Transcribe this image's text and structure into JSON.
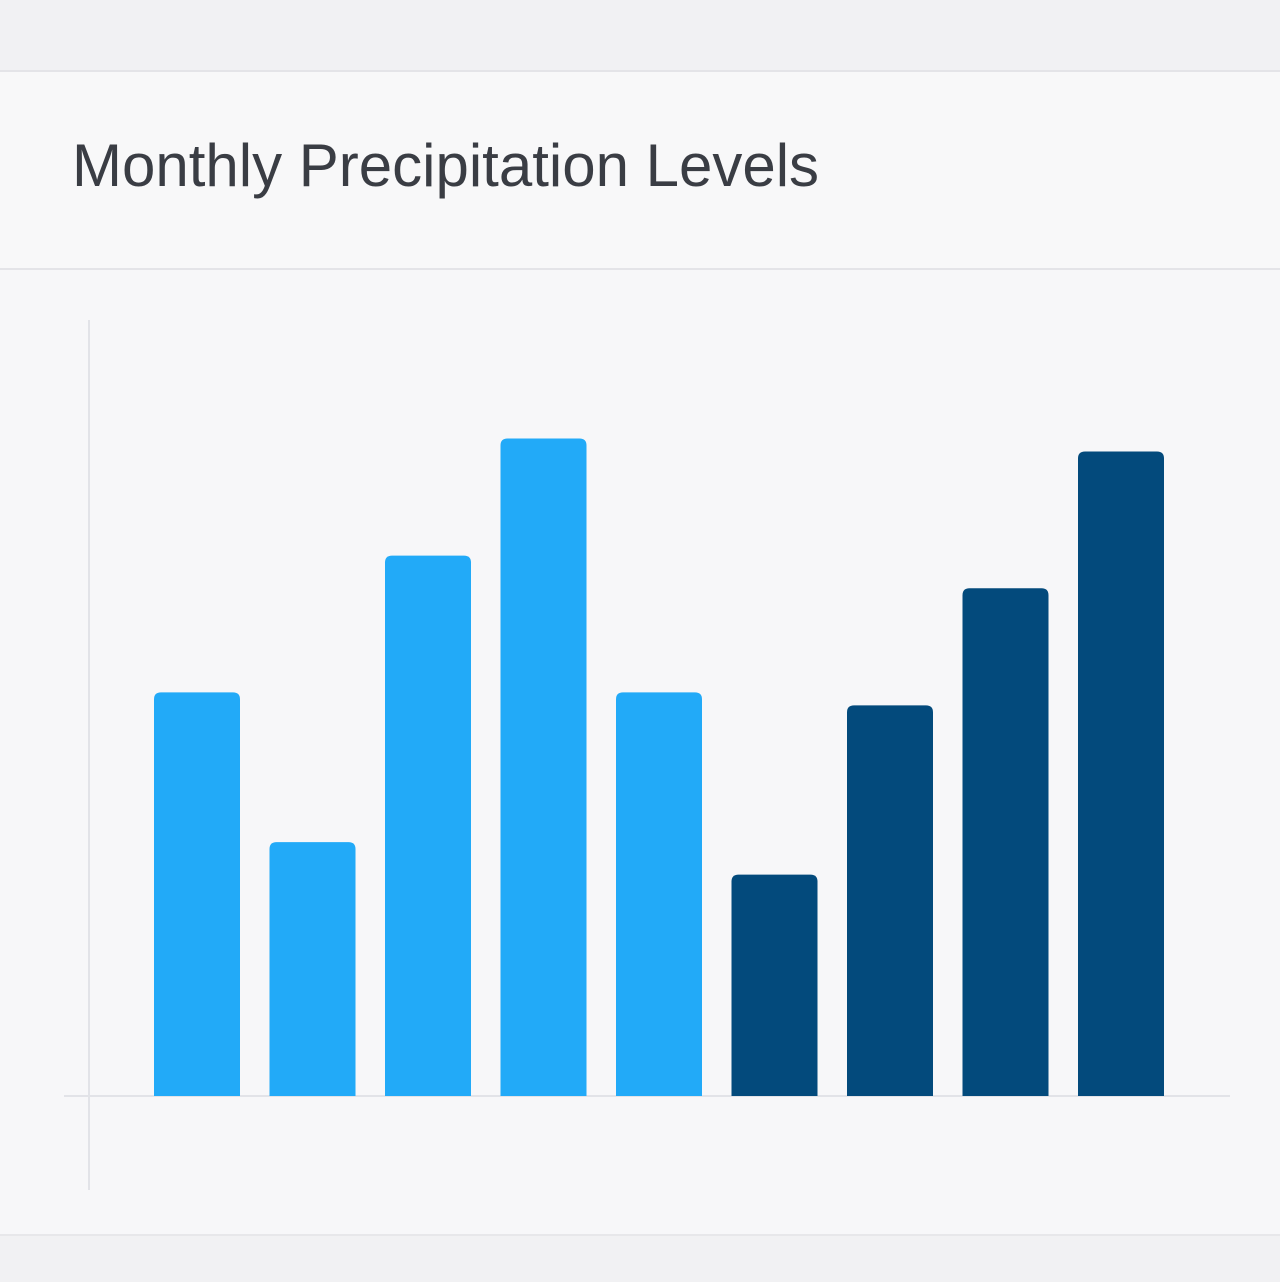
{
  "header": {
    "title": "Monthly Precipitation Levels"
  },
  "chart_data": {
    "type": "bar",
    "title": "Monthly Precipitation Levels",
    "xlabel": "",
    "ylabel": "",
    "ylim": [
      0,
      100
    ],
    "grid": false,
    "legend": "none",
    "values": [
      62,
      39,
      83,
      101,
      62,
      34,
      60,
      78,
      99
    ],
    "colors": [
      "#22aaf8",
      "#22aaf8",
      "#22aaf8",
      "#22aaf8",
      "#22aaf8",
      "#034a7c",
      "#034a7c",
      "#034a7c",
      "#034a7c"
    ],
    "axis_color": "#e2e3e8"
  }
}
